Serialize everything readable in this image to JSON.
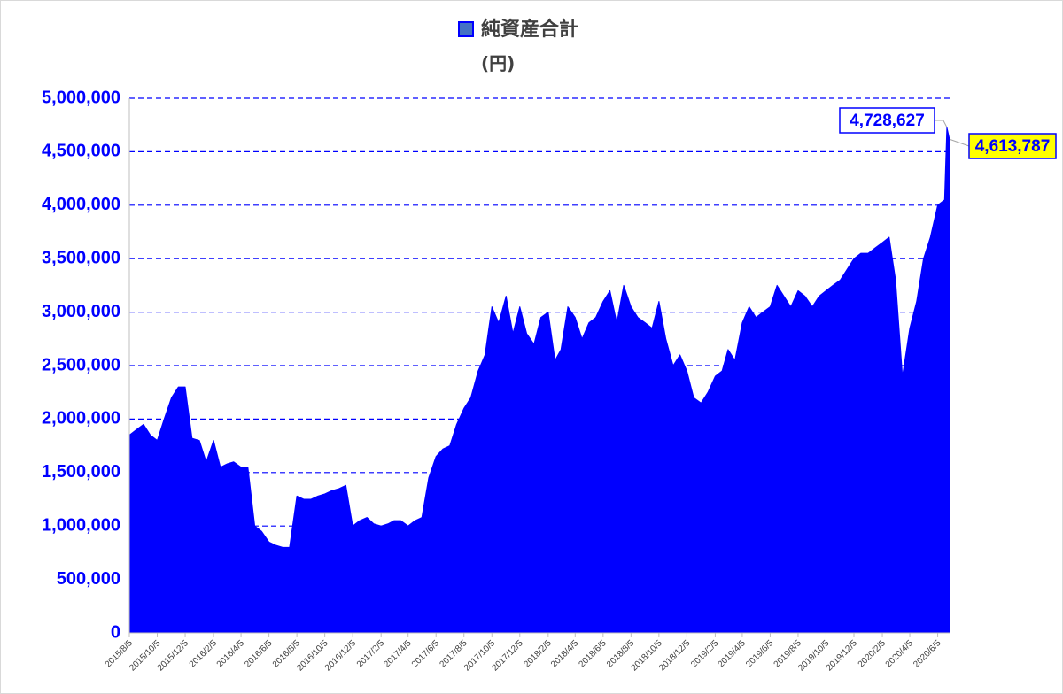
{
  "chart_data": {
    "type": "area",
    "y_label": "(円)",
    "x": [
      "2015/8/5",
      "2015/8/20",
      "2015/9/5",
      "2015/9/20",
      "2015/10/5",
      "2015/10/20",
      "2015/11/5",
      "2015/11/20",
      "2015/12/5",
      "2015/12/20",
      "2016/1/5",
      "2016/1/20",
      "2016/2/5",
      "2016/2/20",
      "2016/3/5",
      "2016/3/20",
      "2016/4/5",
      "2016/4/20",
      "2016/5/5",
      "2016/5/20",
      "2016/6/5",
      "2016/6/20",
      "2016/7/5",
      "2016/7/20",
      "2016/8/5",
      "2016/8/20",
      "2016/9/5",
      "2016/9/20",
      "2016/10/5",
      "2016/10/20",
      "2016/11/5",
      "2016/11/20",
      "2016/12/5",
      "2016/12/20",
      "2017/1/5",
      "2017/1/20",
      "2017/2/5",
      "2017/2/20",
      "2017/3/5",
      "2017/3/20",
      "2017/4/5",
      "2017/4/20",
      "2017/5/5",
      "2017/5/20",
      "2017/6/5",
      "2017/6/20",
      "2017/7/5",
      "2017/7/20",
      "2017/8/5",
      "2017/8/20",
      "2017/9/5",
      "2017/9/20",
      "2017/10/5",
      "2017/10/20",
      "2017/11/5",
      "2017/11/20",
      "2017/12/5",
      "2017/12/20",
      "2018/1/5",
      "2018/1/20",
      "2018/2/5",
      "2018/2/20",
      "2018/3/5",
      "2018/3/20",
      "2018/4/5",
      "2018/4/20",
      "2018/5/5",
      "2018/5/20",
      "2018/6/5",
      "2018/6/20",
      "2018/7/5",
      "2018/7/20",
      "2018/8/5",
      "2018/8/20",
      "2018/9/5",
      "2018/9/20",
      "2018/10/5",
      "2018/10/20",
      "2018/11/5",
      "2018/11/20",
      "2018/12/5",
      "2018/12/20",
      "2019/1/5",
      "2019/1/20",
      "2019/2/5",
      "2019/2/20",
      "2019/3/5",
      "2019/3/20",
      "2019/4/5",
      "2019/4/20",
      "2019/5/5",
      "2019/5/20",
      "2019/6/5",
      "2019/6/20",
      "2019/7/5",
      "2019/7/20",
      "2019/8/5",
      "2019/8/20",
      "2019/9/5",
      "2019/9/20",
      "2019/10/5",
      "2019/10/20",
      "2019/11/5",
      "2019/11/20",
      "2019/12/5",
      "2019/12/20",
      "2020/1/5",
      "2020/1/20",
      "2020/2/5",
      "2020/2/20",
      "2020/3/5",
      "2020/3/20",
      "2020/4/5",
      "2020/4/20",
      "2020/5/5",
      "2020/5/20",
      "2020/6/5",
      "2020/6/20",
      "2020/6/25",
      "2020/7/1"
    ],
    "series": [
      {
        "name": "純資産合計",
        "color": "#0000ff",
        "values": [
          1850000,
          1900000,
          1950000,
          1850000,
          1800000,
          2000000,
          2200000,
          2300000,
          2300000,
          1820000,
          1800000,
          1600000,
          1800000,
          1550000,
          1580000,
          1600000,
          1550000,
          1550000,
          1000000,
          950000,
          850000,
          820000,
          800000,
          800000,
          1280000,
          1250000,
          1250000,
          1280000,
          1300000,
          1330000,
          1350000,
          1380000,
          1000000,
          1050000,
          1080000,
          1020000,
          1000000,
          1020000,
          1050000,
          1050000,
          1000000,
          1050000,
          1080000,
          1450000,
          1650000,
          1720000,
          1750000,
          1950000,
          2100000,
          2200000,
          2450000,
          2600000,
          3050000,
          2900000,
          3150000,
          2800000,
          3050000,
          2800000,
          2700000,
          2950000,
          3000000,
          2550000,
          2650000,
          3050000,
          2950000,
          2750000,
          2900000,
          2950000,
          3100000,
          3200000,
          2900000,
          3250000,
          3050000,
          2950000,
          2900000,
          2850000,
          3100000,
          2750000,
          2500000,
          2600000,
          2450000,
          2200000,
          2150000,
          2250000,
          2400000,
          2450000,
          2650000,
          2550000,
          2900000,
          3050000,
          2950000,
          3000000,
          3050000,
          3250000,
          3150000,
          3050000,
          3200000,
          3150000,
          3050000,
          3150000,
          3200000,
          3250000,
          3300000,
          3400000,
          3500000,
          3550000,
          3550000,
          3600000,
          3650000,
          3700000,
          3300000,
          2400000,
          2850000,
          3100000,
          3500000,
          3700000,
          4000000,
          4050000,
          4728627,
          4613787
        ],
        "value_labels": [
          null,
          null,
          null,
          null,
          null,
          null,
          null,
          null,
          null,
          null,
          null,
          null,
          null,
          null,
          null,
          null,
          null,
          null,
          null,
          null,
          null,
          null,
          null,
          null,
          null,
          null,
          null,
          null,
          null,
          null,
          null,
          null,
          null,
          null,
          null,
          null,
          null,
          null,
          null,
          null,
          null,
          null,
          null,
          null,
          null,
          null,
          null,
          null,
          null,
          null,
          null,
          null,
          null,
          null,
          null,
          null,
          null,
          null,
          null,
          null,
          null,
          null,
          null,
          null,
          null,
          null,
          null,
          null,
          null,
          null,
          null,
          null,
          null,
          null,
          null,
          null,
          null,
          null,
          null,
          null,
          null,
          null,
          null,
          null,
          null,
          null,
          null,
          null,
          null,
          null,
          null,
          null,
          null,
          null,
          null,
          null,
          null,
          null,
          null,
          null,
          null,
          null,
          null,
          null,
          null,
          null,
          null,
          null,
          null,
          null,
          null,
          null,
          null,
          null,
          null,
          null,
          null,
          null,
          "4,728,627",
          "4,613,787"
        ]
      }
    ],
    "xlim": [
      "2015/8/5",
      "2020/7/1"
    ],
    "xticks": [
      "2015/8/5",
      "2015/10/5",
      "2015/12/5",
      "2016/2/5",
      "2016/4/5",
      "2016/6/5",
      "2016/8/5",
      "2016/10/5",
      "2016/12/5",
      "2017/2/5",
      "2017/4/5",
      "2017/6/5",
      "2017/8/5",
      "2017/10/5",
      "2017/12/5",
      "2018/2/5",
      "2018/4/5",
      "2018/6/5",
      "2018/8/5",
      "2018/10/5",
      "2018/12/5",
      "2019/2/5",
      "2019/4/5",
      "2019/6/5",
      "2019/8/5",
      "2019/10/5",
      "2019/12/5",
      "2020/2/5",
      "2020/4/5",
      "2020/6/5"
    ],
    "ylim": [
      0,
      5000000
    ],
    "yticks": [
      0,
      {
        "value": 500000,
        "label": "500,000"
      },
      {
        "value": 1000000,
        "label": "1,000,000"
      },
      {
        "value": 1500000,
        "label": "1,500,000"
      },
      {
        "value": 2000000,
        "label": "2,000,000"
      },
      {
        "value": 2500000,
        "label": "2,500,000"
      },
      {
        "value": 3000000,
        "label": "3,000,000"
      },
      {
        "value": 3500000,
        "label": "3,500,000"
      },
      {
        "value": 4000000,
        "label": "4,000,000"
      },
      {
        "value": 4500000,
        "label": "4,500,000"
      },
      {
        "value": 5000000,
        "label": "5,000,000"
      }
    ],
    "grid": true
  }
}
